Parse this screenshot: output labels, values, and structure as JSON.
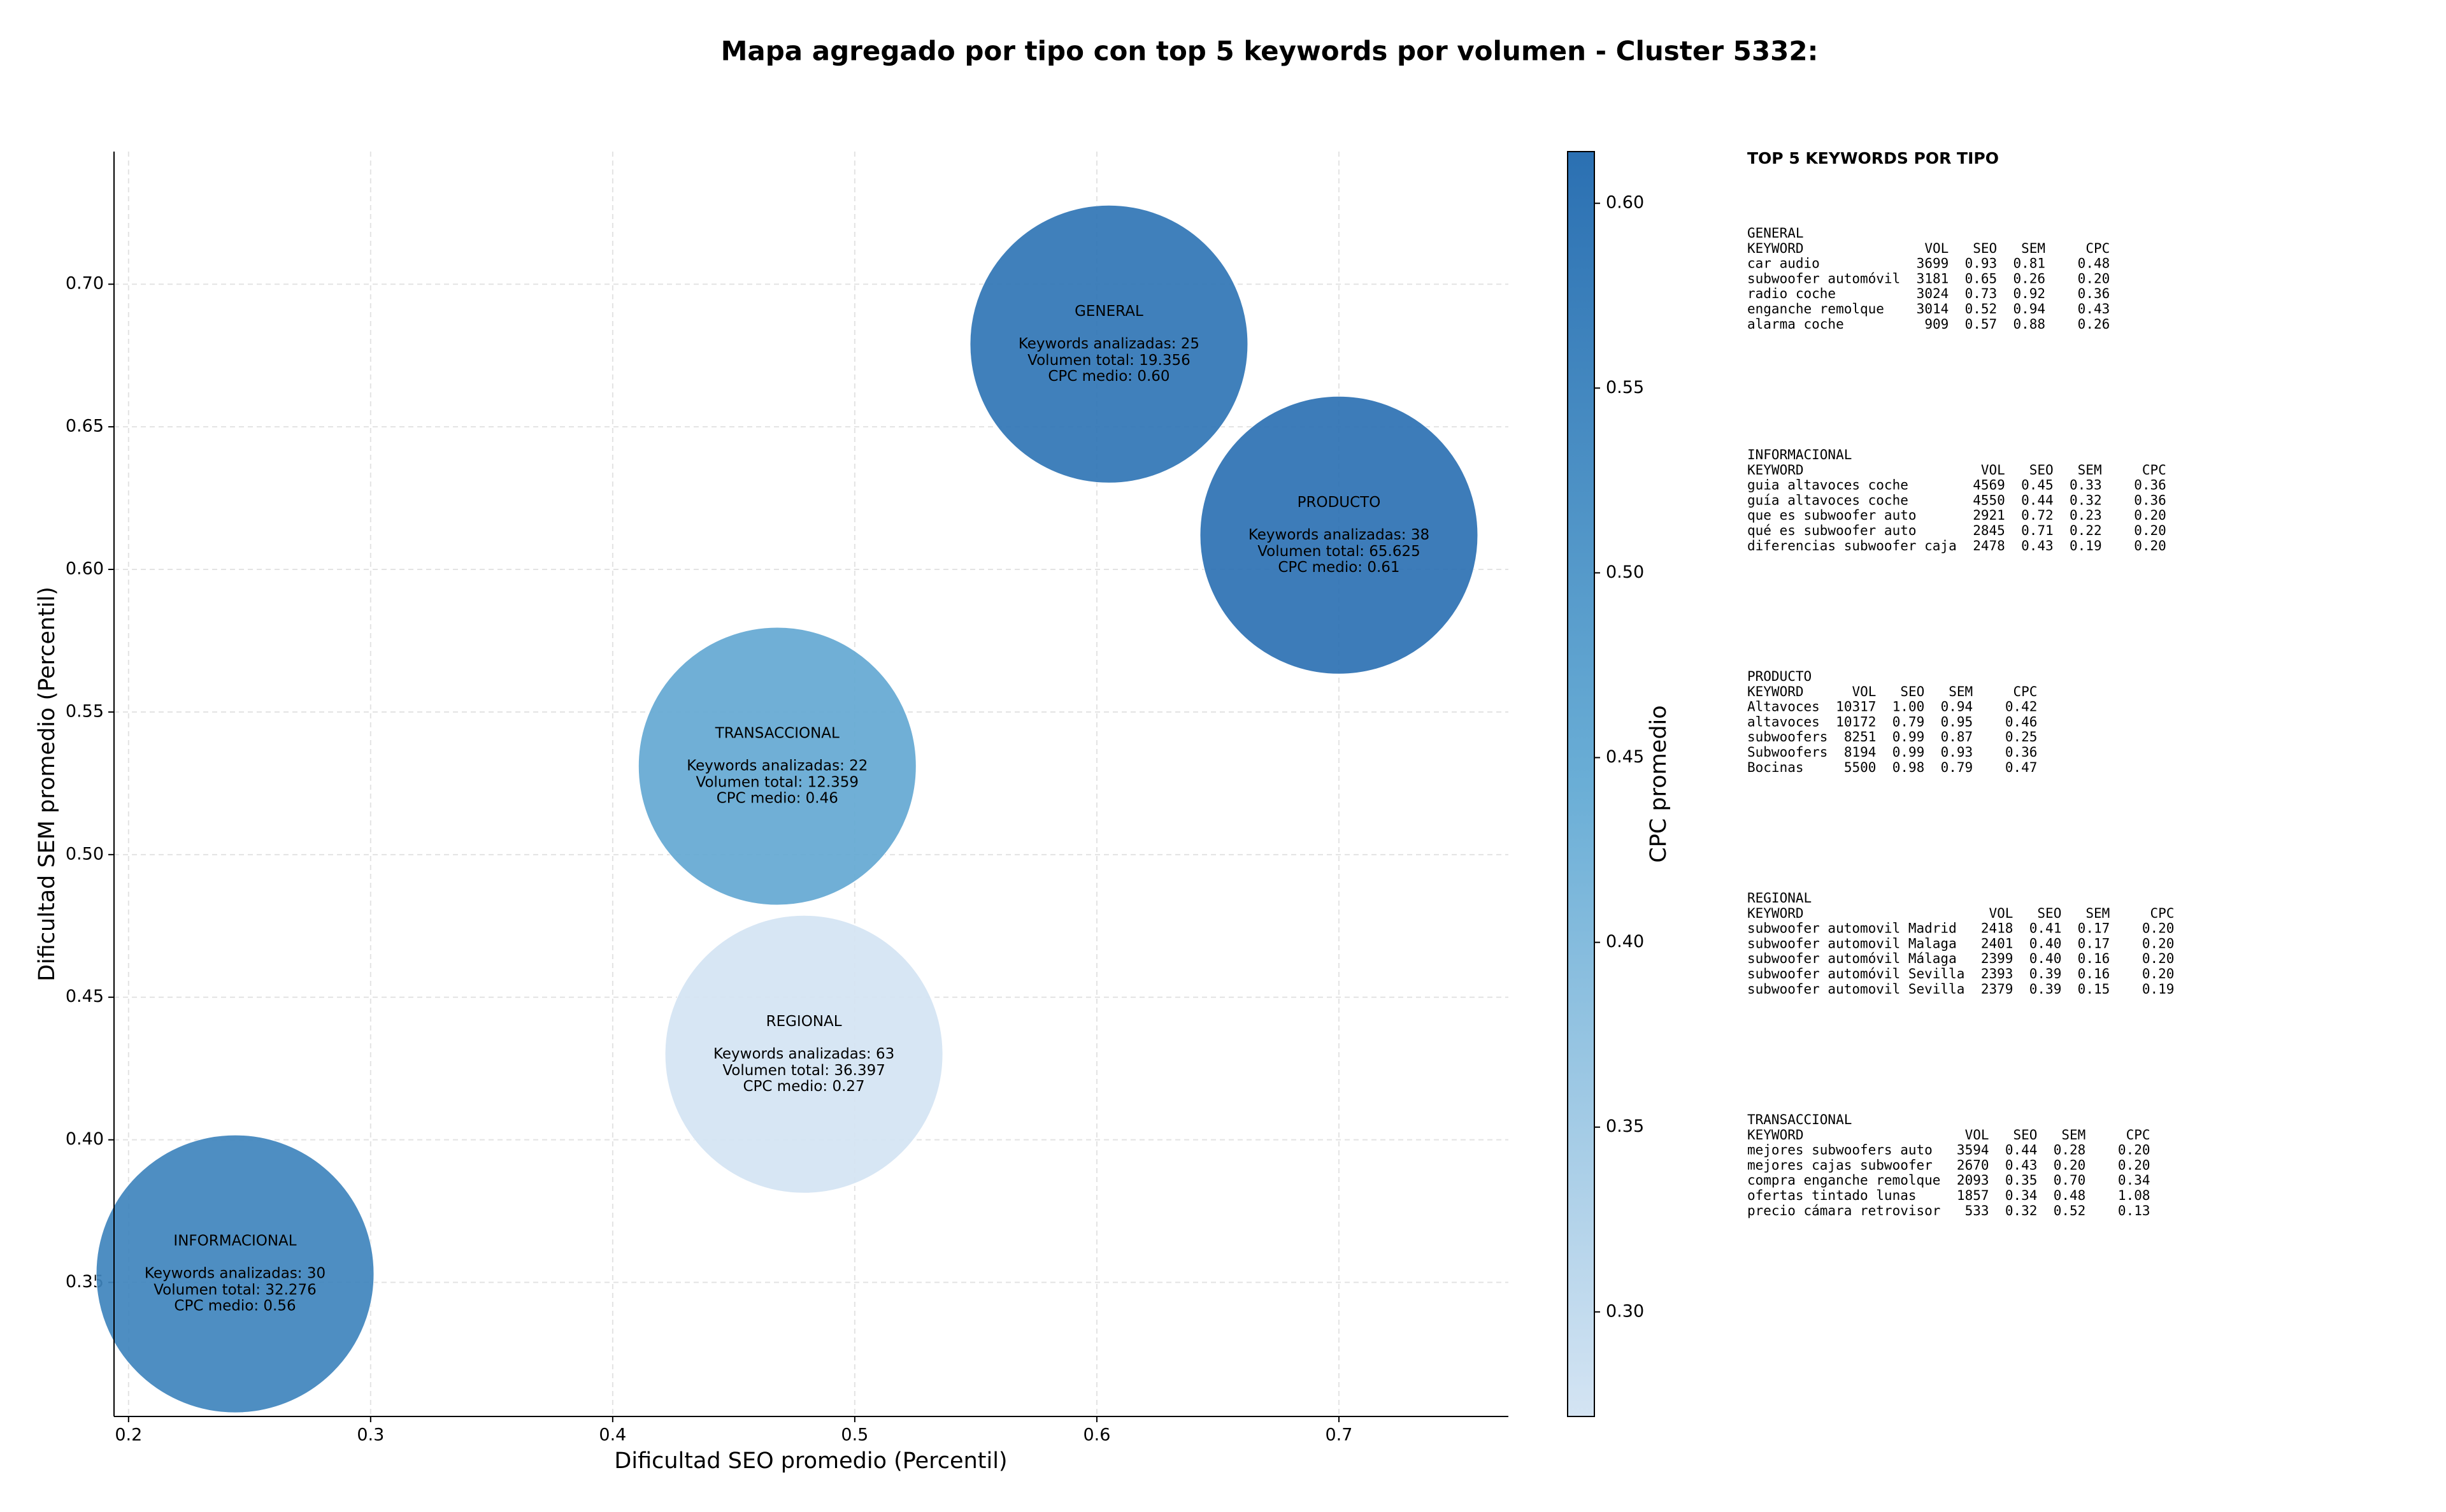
{
  "chart_data": {
    "type": "scatter",
    "title": "Mapa agregado por tipo con top 5 keywords por volumen - Cluster 5332:",
    "xlabel": "Dificultad SEO promedio (Percentil)",
    "ylabel": "Dificultad SEM promedio (Percentil)",
    "xlim": [
      0.194,
      0.77
    ],
    "ylim": [
      0.303,
      0.7465
    ],
    "xticks": [
      0.2,
      0.3,
      0.4,
      0.5,
      0.6,
      0.7
    ],
    "yticks": [
      {
        "value": 0.35,
        "label": "0.35"
      },
      {
        "value": 0.4,
        "label": "0.40"
      },
      {
        "value": 0.45,
        "label": "0.45"
      },
      {
        "value": 0.5,
        "label": "0.50"
      },
      {
        "value": 0.55,
        "label": "0.55"
      },
      {
        "value": 0.6,
        "label": "0.60"
      },
      {
        "value": 0.65,
        "label": "0.65"
      },
      {
        "value": 0.7,
        "label": "0.70"
      }
    ],
    "grid": true,
    "categories": [
      "GENERAL",
      "PRODUCTO",
      "TRANSACCIONAL",
      "REGIONAL",
      "INFORMACIONAL"
    ],
    "x": [
      0.605,
      0.7,
      0.468,
      0.479,
      0.244
    ],
    "values": [
      0.679,
      0.612,
      0.531,
      0.43,
      0.353
    ],
    "cpc": [
      0.6,
      0.61,
      0.46,
      0.27,
      0.56
    ],
    "annotations": [
      [
        "Keywords analizadas: 25",
        "Volumen total: 19.356",
        "CPC medio: 0.60"
      ],
      [
        "Keywords analizadas: 38",
        "Volumen total: 65.625",
        "CPC medio: 0.61"
      ],
      [
        "Keywords analizadas: 22",
        "Volumen total: 12.359",
        "CPC medio: 0.46"
      ],
      [
        "Keywords analizadas: 63",
        "Volumen total: 36.397",
        "CPC medio: 0.27"
      ],
      [
        "Keywords analizadas: 30",
        "Volumen total: 32.276",
        "CPC medio: 0.56"
      ]
    ],
    "colormap": [
      "#d4e4f3",
      "#6aaed6",
      "#2b70b2"
    ],
    "colorbar": {
      "label": "CPC promedio",
      "clim": [
        0.2717,
        0.614
      ],
      "ticks": [
        {
          "value": 0.3,
          "label": "0.30"
        },
        {
          "value": 0.35,
          "label": "0.35"
        },
        {
          "value": 0.4,
          "label": "0.40"
        },
        {
          "value": 0.45,
          "label": "0.45"
        },
        {
          "value": 0.5,
          "label": "0.50"
        },
        {
          "value": 0.55,
          "label": "0.55"
        },
        {
          "value": 0.6,
          "label": "0.60"
        }
      ]
    },
    "panel": {
      "title": "TOP 5 KEYWORDS POR TIPO",
      "columns": [
        "KEYWORD",
        "VOL",
        "SEO",
        "SEM",
        "CPC"
      ],
      "blocks": [
        {
          "name": "GENERAL",
          "rows": [
            [
              "car audio",
              "3699",
              "0.93",
              "0.81",
              "0.48"
            ],
            [
              "subwoofer automóvil",
              "3181",
              "0.65",
              "0.26",
              "0.20"
            ],
            [
              "radio coche",
              "3024",
              "0.73",
              "0.92",
              "0.36"
            ],
            [
              "enganche remolque",
              "3014",
              "0.52",
              "0.94",
              "0.43"
            ],
            [
              "alarma coche",
              "909",
              "0.57",
              "0.88",
              "0.26"
            ]
          ]
        },
        {
          "name": "INFORMACIONAL",
          "rows": [
            [
              "guia altavoces coche",
              "4569",
              "0.45",
              "0.33",
              "0.36"
            ],
            [
              "guía altavoces coche",
              "4550",
              "0.44",
              "0.32",
              "0.36"
            ],
            [
              "que es subwoofer auto",
              "2921",
              "0.72",
              "0.23",
              "0.20"
            ],
            [
              "qué es subwoofer auto",
              "2845",
              "0.71",
              "0.22",
              "0.20"
            ],
            [
              "diferencias subwoofer caja",
              "2478",
              "0.43",
              "0.19",
              "0.20"
            ]
          ]
        },
        {
          "name": "PRODUCTO",
          "rows": [
            [
              "Altavoces",
              "10317",
              "1.00",
              "0.94",
              "0.42"
            ],
            [
              "altavoces",
              "10172",
              "0.79",
              "0.95",
              "0.46"
            ],
            [
              "subwoofers",
              "8251",
              "0.99",
              "0.87",
              "0.25"
            ],
            [
              "Subwoofers",
              "8194",
              "0.99",
              "0.93",
              "0.36"
            ],
            [
              "Bocinas",
              "5500",
              "0.98",
              "0.79",
              "0.47"
            ]
          ]
        },
        {
          "name": "REGIONAL",
          "rows": [
            [
              "subwoofer automovil Madrid",
              "2418",
              "0.41",
              "0.17",
              "0.20"
            ],
            [
              "subwoofer automovil Malaga",
              "2401",
              "0.40",
              "0.17",
              "0.20"
            ],
            [
              "subwoofer automóvil Málaga",
              "2399",
              "0.40",
              "0.16",
              "0.20"
            ],
            [
              "subwoofer automóvil Sevilla",
              "2393",
              "0.39",
              "0.16",
              "0.20"
            ],
            [
              "subwoofer automovil Sevilla",
              "2379",
              "0.39",
              "0.15",
              "0.19"
            ]
          ]
        },
        {
          "name": "TRANSACCIONAL",
          "rows": [
            [
              "mejores subwoofers auto",
              "3594",
              "0.44",
              "0.28",
              "0.20"
            ],
            [
              "mejores cajas subwoofer",
              "2670",
              "0.43",
              "0.20",
              "0.20"
            ],
            [
              "compra enganche remolque",
              "2093",
              "0.35",
              "0.70",
              "0.34"
            ],
            [
              "ofertas tintado lunas",
              "1857",
              "0.34",
              "0.48",
              "1.08"
            ],
            [
              "precio cámara retrovisor",
              "533",
              "0.32",
              "0.52",
              "0.13"
            ]
          ]
        }
      ]
    }
  }
}
